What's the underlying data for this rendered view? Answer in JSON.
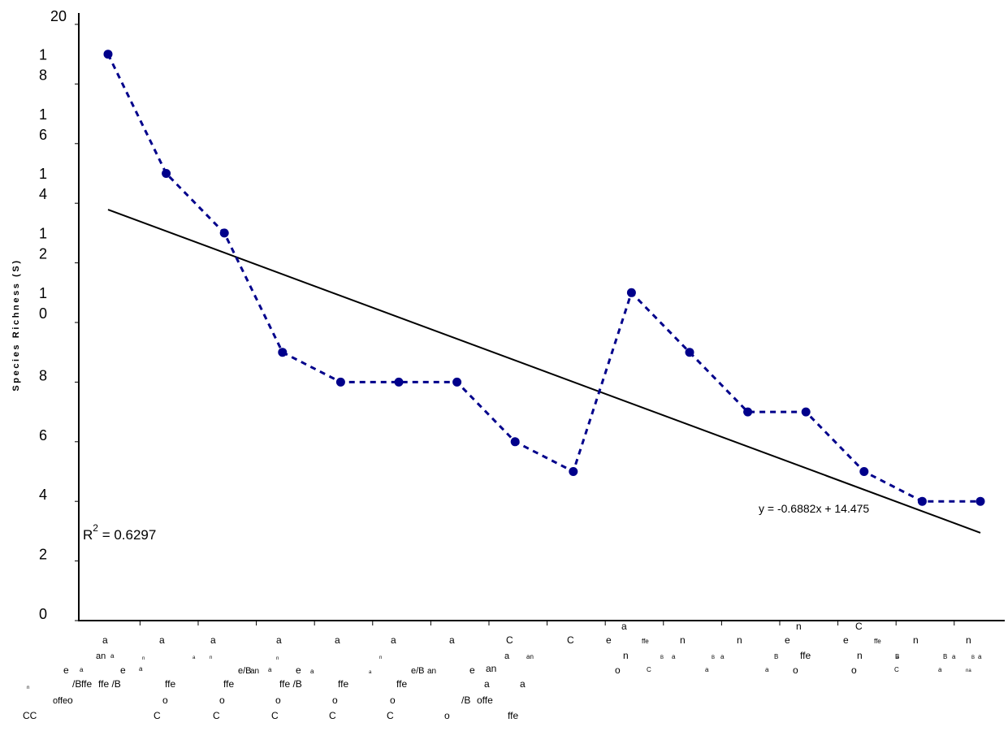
{
  "chart_data": {
    "type": "line",
    "ylabel": "Species Richness (S)",
    "xlabel": "",
    "ylim": [
      0,
      20
    ],
    "y_ticks": [
      0,
      2,
      4,
      6,
      8,
      10,
      12,
      14,
      16,
      18,
      20
    ],
    "y_tick_labels": [
      "0",
      "2",
      "4",
      "6",
      "8",
      "1\n0",
      "1\n2",
      "1\n4",
      "1\n6",
      "1\n8",
      "20"
    ],
    "x": [
      1,
      2,
      3,
      4,
      5,
      6,
      7,
      8,
      9,
      10,
      11,
      12,
      13,
      14,
      15,
      16
    ],
    "series": [
      {
        "values": [
          19,
          15,
          13,
          9,
          8,
          8,
          8,
          6,
          5,
          11,
          9,
          7,
          7,
          5,
          4,
          4
        ],
        "color": "#00008b",
        "style": "dashed-with-markers"
      }
    ],
    "trendline": {
      "slope": -0.6882,
      "intercept": 14.475,
      "equation_label": "y = -0.6882x + 14.475",
      "r2_label": "R",
      "r2_sup": "2",
      "r2_value": " = 0.6297",
      "color": "#000000"
    },
    "x_tick_fragments": [
      "a",
      "an",
      "a",
      "n",
      "e",
      "a",
      "e",
      "a",
      "n",
      "ffe",
      "/B",
      "offe",
      "o",
      "CC",
      "a",
      "ffe /B",
      "ffe",
      "o",
      "C",
      "a",
      "n",
      "a",
      "ffe",
      "o",
      "C",
      "a",
      "e/B",
      "an",
      "a",
      "n",
      "ffe /B",
      "o",
      "C",
      "a",
      "e",
      "a",
      "ffe",
      "o",
      "C",
      "a",
      "a",
      "n",
      "e/B",
      "an",
      "ffe",
      "o",
      "C",
      "a",
      "e",
      "an",
      "a",
      "/B",
      "offe",
      "o",
      "C",
      "a",
      "an",
      "a",
      "ffe",
      "C",
      "a",
      "e",
      "ffe",
      "n",
      "o",
      "C",
      "B",
      "a",
      "n",
      "a",
      "B",
      "a",
      "n",
      "a",
      "B",
      "n",
      "e",
      "ffe",
      "o",
      "C",
      "e",
      "ffe",
      "n",
      "o",
      "C",
      "B",
      "a",
      "n",
      "a",
      "B",
      "a",
      "n",
      "na",
      "B",
      "a",
      "n"
    ]
  }
}
